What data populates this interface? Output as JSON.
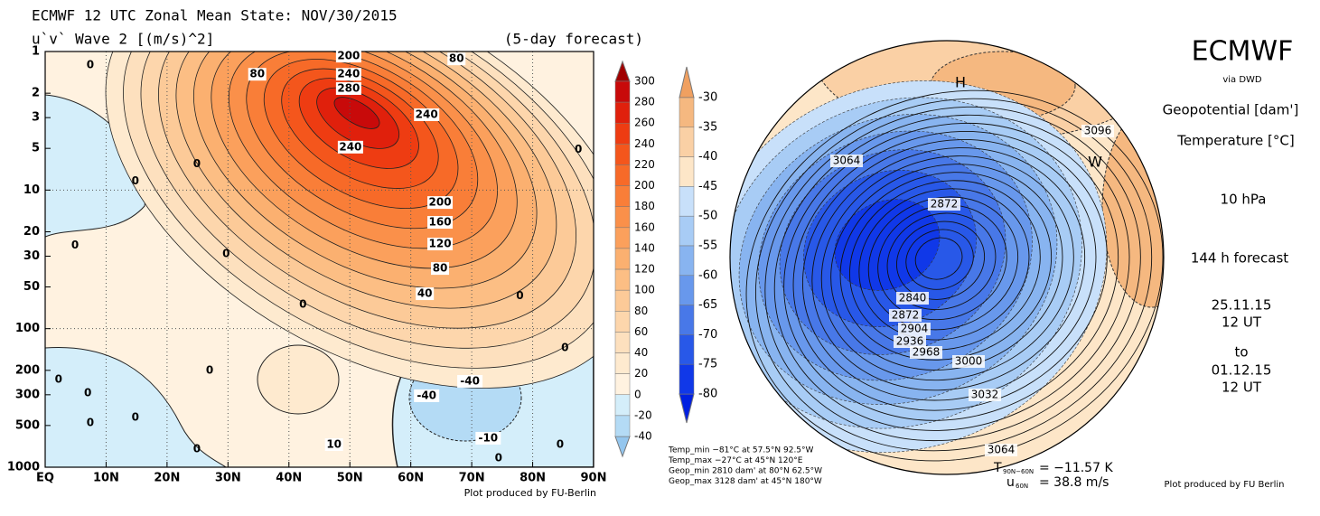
{
  "chart_data": [
    {
      "type": "contour",
      "title": "ECMWF 12 UTC Zonal Mean State: NOV/30/2015",
      "subtitle": "u`v` Wave 2 [(m/s)^2]",
      "forecast": "(5-day forecast)",
      "xlim": [
        0,
        90
      ],
      "xticks": [
        {
          "value": 0,
          "label": "EQ"
        },
        {
          "value": 10,
          "label": "10N"
        },
        {
          "value": 20,
          "label": "20N"
        },
        {
          "value": 30,
          "label": "30N"
        },
        {
          "value": 40,
          "label": "40N"
        },
        {
          "value": 50,
          "label": "50N"
        },
        {
          "value": 60,
          "label": "60N"
        },
        {
          "value": 70,
          "label": "70N"
        },
        {
          "value": 80,
          "label": "80N"
        },
        {
          "value": 90,
          "label": "90N"
        }
      ],
      "ylim": [
        1000,
        1
      ],
      "yticks": [
        1,
        2,
        3,
        5,
        10,
        20,
        30,
        50,
        100,
        200,
        300,
        500,
        1000
      ],
      "log_y": true,
      "grid": true,
      "annotations": [
        {
          "value": 200,
          "lat": 49.8,
          "p": 1.08
        },
        {
          "value": 240,
          "lat": 49.8,
          "p": 1.46
        },
        {
          "value": 280,
          "lat": 49.8,
          "p": 1.85
        },
        {
          "value": 80,
          "lat": 34.8,
          "p": 1.46
        },
        {
          "value": 80,
          "lat": 67.5,
          "p": 1.13
        },
        {
          "value": 240,
          "lat": 62.6,
          "p": 2.86
        },
        {
          "value": 240,
          "lat": 50.1,
          "p": 4.9
        },
        {
          "value": 200,
          "lat": 64.8,
          "p": 12.3
        },
        {
          "value": 160,
          "lat": 64.8,
          "p": 17.1
        },
        {
          "value": 120,
          "lat": 64.8,
          "p": 24.5
        },
        {
          "value": 80,
          "lat": 64.8,
          "p": 36.8
        },
        {
          "value": 40,
          "lat": 62.3,
          "p": 56
        },
        {
          "value": -40,
          "lat": 69.7,
          "p": 240
        },
        {
          "value": -40,
          "lat": 62.6,
          "p": 305
        },
        {
          "value": -10,
          "lat": 72.7,
          "p": 618
        },
        {
          "value": 10,
          "lat": 47.4,
          "p": 687
        },
        {
          "value": 0,
          "lat": 7.4,
          "p": 1.25
        },
        {
          "value": 0,
          "lat": 14.8,
          "p": 8.6
        },
        {
          "value": 0,
          "lat": 24.9,
          "p": 6.5
        },
        {
          "value": 0,
          "lat": 4.9,
          "p": 25
        },
        {
          "value": 0,
          "lat": 29.7,
          "p": 29
        },
        {
          "value": 0,
          "lat": 42.3,
          "p": 67
        },
        {
          "value": 0,
          "lat": 77.9,
          "p": 58
        },
        {
          "value": 0,
          "lat": 85.3,
          "p": 138
        },
        {
          "value": 0,
          "lat": 87.5,
          "p": 5.1
        },
        {
          "value": 0,
          "lat": 27,
          "p": 200
        },
        {
          "value": 0,
          "lat": 2.2,
          "p": 233
        },
        {
          "value": 0,
          "lat": 7.4,
          "p": 480
        },
        {
          "value": 0,
          "lat": 14.8,
          "p": 438
        },
        {
          "value": 0,
          "lat": 24.9,
          "p": 741
        },
        {
          "value": 0,
          "lat": 74.4,
          "p": 861
        },
        {
          "value": 0,
          "lat": 84.5,
          "p": 687
        },
        {
          "value": 0,
          "lat": 7,
          "p": 292
        }
      ],
      "colorbar": {
        "levels": [
          300,
          280,
          260,
          240,
          220,
          200,
          180,
          160,
          140,
          120,
          100,
          80,
          60,
          40,
          20,
          0,
          -20,
          -40
        ],
        "colors": [
          "#a00000",
          "#c80a0a",
          "#e0200c",
          "#ee3c12",
          "#f4561c",
          "#f76a28",
          "#f97e38",
          "#fa904a",
          "#fba05c",
          "#fbb070",
          "#fcbe84",
          "#fcca98",
          "#fdd6ac",
          "#fde0be",
          "#feeacf",
          "#fff2e0",
          "#d4eefa",
          "#b4dbf5",
          "#94c6ee"
        ]
      },
      "credit": "Plot produced by FU-Berlin"
    },
    {
      "type": "polar_map",
      "title": "ECMWF",
      "source": "via DWD",
      "fields": [
        "Geopotential [dam']",
        "Temperature [°C]"
      ],
      "level": "10 hPa",
      "forecast": "144 h forecast",
      "start": [
        "25.11.15",
        "12 UT"
      ],
      "to": "to",
      "end": [
        "01.12.15",
        "12 UT"
      ],
      "contour_labels": [
        3064,
        3096,
        2872,
        2840,
        2872,
        2904,
        2936,
        2968,
        3000,
        3032,
        3064
      ],
      "markers": [
        "H",
        "W"
      ],
      "stats": [
        "Temp_min −81°C at 57.5°N 92.5°W",
        "Temp_max −27°C at 45°N 120°E",
        "Geop_min 2810 dam' at 80°N 62.5°W",
        "Geop_max 3128 dam' at 45°N 180°W"
      ],
      "indices": [
        {
          "name": "T",
          "sub": "90N−60N",
          "text": "= −11.57 K"
        },
        {
          "name": "u",
          "sub": "60N",
          "text": "= 38.8 m/s"
        }
      ],
      "colorbar": {
        "levels": [
          -30,
          -35,
          -40,
          -45,
          -50,
          -55,
          -60,
          -65,
          -70,
          -75,
          -80
        ],
        "colors": [
          "#f0a060",
          "#f5b880",
          "#fad0a5",
          "#fde6c8",
          "#c8e0fa",
          "#a8ccf5",
          "#88b4f0",
          "#6898ec",
          "#4878e8",
          "#2858e8",
          "#1038e8",
          "#0020e0"
        ]
      },
      "credit": "Plot produced by FU Berlin"
    }
  ]
}
